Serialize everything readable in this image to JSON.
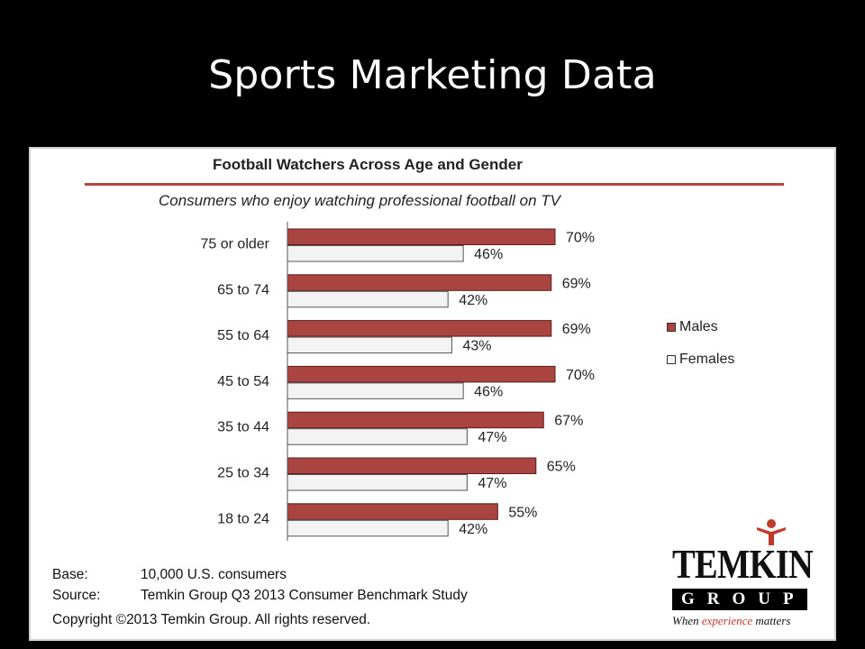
{
  "slide": {
    "title": "Sports Marketing Data"
  },
  "chart_data": {
    "type": "bar",
    "orientation": "horizontal",
    "title": "Football Watchers Across Age and Gender",
    "subtitle": "Consumers who enjoy watching professional football on TV",
    "categories": [
      "75 or older",
      "65 to 74",
      "55 to 64",
      "45 to 54",
      "35 to 44",
      "25 to 34",
      "18 to 24"
    ],
    "series": [
      {
        "name": "Males",
        "values": [
          70,
          69,
          69,
          70,
          67,
          65,
          55
        ],
        "labels": [
          "70%",
          "69%",
          "69%",
          "70%",
          "67%",
          "65%",
          "55%"
        ],
        "color": "#a94440"
      },
      {
        "name": "Females",
        "values": [
          46,
          42,
          43,
          46,
          47,
          47,
          42
        ],
        "labels": [
          "46%",
          "42%",
          "43%",
          "46%",
          "47%",
          "47%",
          "42%"
        ],
        "color": "#f3f3f3"
      }
    ],
    "xlim": [
      0,
      70
    ],
    "legend": "right",
    "grid": false
  },
  "footer": {
    "base_label": "Base:",
    "base_value": "10,000 U.S. consumers",
    "source_label": "Source:",
    "source_value": "Temkin Group Q3 2013 Consumer Benchmark Study",
    "copyright": "Copyright ©2013 Temkin Group. All rights reserved."
  },
  "logo": {
    "word": "TEMKIN",
    "group": "GROUP",
    "tagline_start": "When ",
    "tagline_accent": "experience",
    "tagline_end": " matters"
  },
  "colors": {
    "background": "#000000",
    "accent": "#a94440",
    "rule": "#b5453d"
  }
}
